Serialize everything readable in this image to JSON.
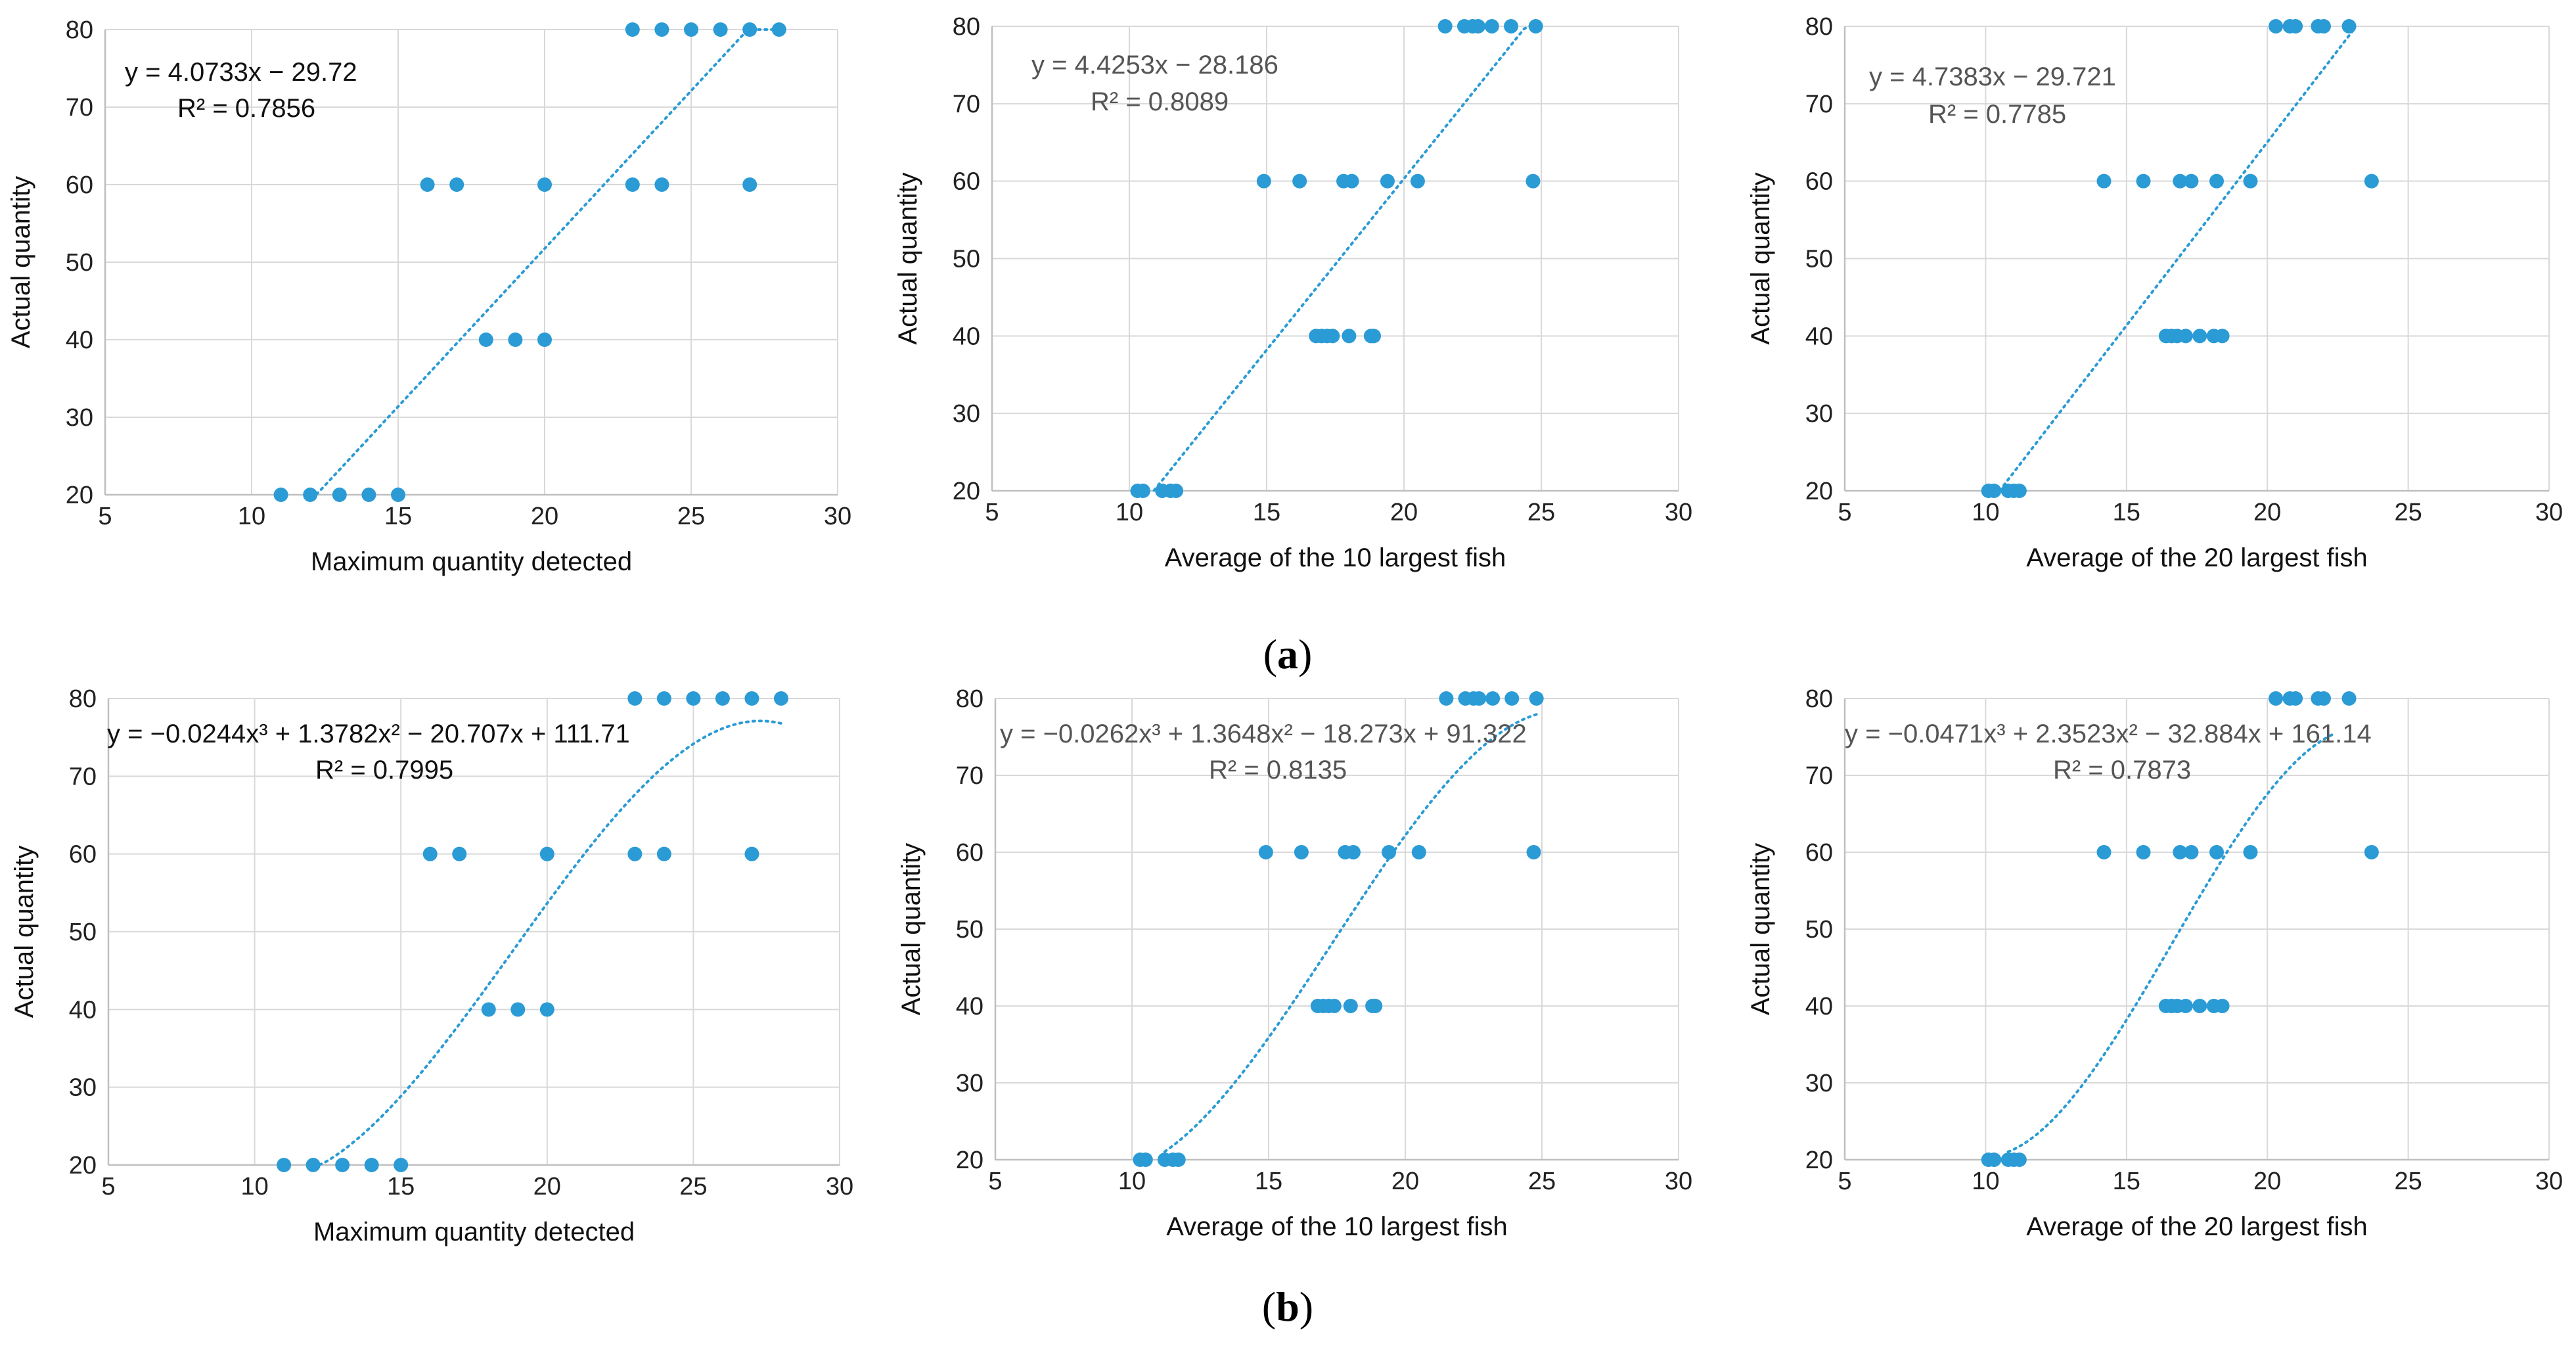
{
  "panel_labels": {
    "a": "a",
    "b": "b"
  },
  "colors": {
    "point": "#2b9bd5",
    "trend": "#2b9bd5",
    "grid": "#d9d9d9",
    "axis": "#bfbfbf"
  },
  "chart_data": [
    {
      "id": "a1",
      "type": "scatter",
      "trendline": "linear",
      "xlabel": "Maximum quantity detected",
      "ylabel": "Actual quantity",
      "xlim": [
        5,
        30
      ],
      "ylim": [
        20,
        80
      ],
      "xticks": [
        "5",
        "10",
        "15",
        "20",
        "25",
        "30"
      ],
      "yticks": [
        "20",
        "30",
        "40",
        "50",
        "60",
        "70",
        "80"
      ],
      "equation": "y = 4.0733x − 29.72",
      "r2": "R² = 0.7856",
      "coef": [
        -29.72,
        4.0733
      ],
      "fit_range": [
        12,
        27.8
      ],
      "points": [
        [
          11,
          20
        ],
        [
          12,
          20
        ],
        [
          13,
          20
        ],
        [
          14,
          20
        ],
        [
          15,
          20
        ],
        [
          18,
          40
        ],
        [
          19,
          40
        ],
        [
          20,
          40
        ],
        [
          16,
          60
        ],
        [
          17,
          60
        ],
        [
          20,
          60
        ],
        [
          23,
          60
        ],
        [
          24,
          60
        ],
        [
          27,
          60
        ],
        [
          23,
          80
        ],
        [
          24,
          80
        ],
        [
          25,
          80
        ],
        [
          26,
          80
        ],
        [
          27,
          80
        ],
        [
          28,
          80
        ]
      ]
    },
    {
      "id": "a2",
      "type": "scatter",
      "trendline": "linear",
      "xlabel": "Average of the 10 largest fish",
      "ylabel": "Actual quantity",
      "xlim": [
        5,
        30
      ],
      "ylim": [
        20,
        80
      ],
      "xticks": [
        "5",
        "10",
        "15",
        "20",
        "25",
        "30"
      ],
      "yticks": [
        "20",
        "30",
        "40",
        "50",
        "60",
        "70",
        "80"
      ],
      "equation": "y = 4.4253x − 28.186",
      "r2": "R² = 0.8089",
      "coef": [
        -28.186,
        4.4253
      ],
      "fit_range": [
        10.9,
        24.9
      ],
      "points": [
        [
          10.3,
          20
        ],
        [
          10.5,
          20
        ],
        [
          11.2,
          20
        ],
        [
          11.5,
          20
        ],
        [
          11.7,
          20
        ],
        [
          16.8,
          40
        ],
        [
          17.0,
          40
        ],
        [
          17.2,
          40
        ],
        [
          17.4,
          40
        ],
        [
          18.0,
          40
        ],
        [
          18.8,
          40
        ],
        [
          18.9,
          40
        ],
        [
          14.9,
          60
        ],
        [
          16.2,
          60
        ],
        [
          17.8,
          60
        ],
        [
          18.1,
          60
        ],
        [
          19.4,
          60
        ],
        [
          20.5,
          60
        ],
        [
          24.7,
          60
        ],
        [
          21.5,
          80
        ],
        [
          22.2,
          80
        ],
        [
          22.5,
          80
        ],
        [
          22.7,
          80
        ],
        [
          23.2,
          80
        ],
        [
          23.9,
          80
        ],
        [
          24.8,
          80
        ]
      ]
    },
    {
      "id": "a3",
      "type": "scatter",
      "trendline": "linear",
      "xlabel": "Average of the 20 largest fish",
      "ylabel": "Actual quantity",
      "xlim": [
        5,
        30
      ],
      "ylim": [
        20,
        80
      ],
      "xticks": [
        "5",
        "10",
        "15",
        "20",
        "25",
        "30"
      ],
      "yticks": [
        "20",
        "30",
        "40",
        "50",
        "60",
        "70",
        "80"
      ],
      "equation": "y = 4.7383x − 29.721",
      "r2": "R² = 0.7785",
      "coef": [
        -29.721,
        4.7383
      ],
      "fit_range": [
        10.5,
        23.1
      ],
      "points": [
        [
          10.1,
          20
        ],
        [
          10.3,
          20
        ],
        [
          10.8,
          20
        ],
        [
          11.0,
          20
        ],
        [
          11.2,
          20
        ],
        [
          16.4,
          40
        ],
        [
          16.6,
          40
        ],
        [
          16.8,
          40
        ],
        [
          17.1,
          40
        ],
        [
          17.6,
          40
        ],
        [
          18.1,
          40
        ],
        [
          18.4,
          40
        ],
        [
          14.2,
          60
        ],
        [
          15.6,
          60
        ],
        [
          16.9,
          60
        ],
        [
          17.3,
          60
        ],
        [
          18.2,
          60
        ],
        [
          19.4,
          60
        ],
        [
          23.7,
          60
        ],
        [
          20.3,
          80
        ],
        [
          20.8,
          80
        ],
        [
          21.0,
          80
        ],
        [
          21.8,
          80
        ],
        [
          22.0,
          80
        ],
        [
          22.9,
          80
        ]
      ]
    },
    {
      "id": "b1",
      "type": "scatter",
      "trendline": "cubic",
      "xlabel": "Maximum quantity detected",
      "ylabel": "Actual quantity",
      "xlim": [
        5,
        30
      ],
      "ylim": [
        20,
        80
      ],
      "xticks": [
        "5",
        "10",
        "15",
        "20",
        "25",
        "30"
      ],
      "yticks": [
        "20",
        "30",
        "40",
        "50",
        "60",
        "70",
        "80"
      ],
      "equation": "y = −0.0244x³ + 1.3782x² − 20.707x + 111.71",
      "r2": "R² = 0.7995",
      "coef": [
        111.71,
        -20.707,
        1.3782,
        -0.0244
      ],
      "fit_range": [
        12,
        28
      ],
      "points": [
        [
          11,
          20
        ],
        [
          12,
          20
        ],
        [
          13,
          20
        ],
        [
          14,
          20
        ],
        [
          15,
          20
        ],
        [
          18,
          40
        ],
        [
          19,
          40
        ],
        [
          20,
          40
        ],
        [
          16,
          60
        ],
        [
          17,
          60
        ],
        [
          20,
          60
        ],
        [
          23,
          60
        ],
        [
          24,
          60
        ],
        [
          27,
          60
        ],
        [
          23,
          80
        ],
        [
          24,
          80
        ],
        [
          25,
          80
        ],
        [
          26,
          80
        ],
        [
          27,
          80
        ],
        [
          28,
          80
        ]
      ]
    },
    {
      "id": "b2",
      "type": "scatter",
      "trendline": "cubic",
      "xlabel": "Average of the 10 largest fish",
      "ylabel": "Actual quantity",
      "xlim": [
        5,
        30
      ],
      "ylim": [
        20,
        80
      ],
      "xticks": [
        "5",
        "10",
        "15",
        "20",
        "25",
        "30"
      ],
      "yticks": [
        "20",
        "30",
        "40",
        "50",
        "60",
        "70",
        "80"
      ],
      "equation": "y = −0.0262x³ + 1.3648x² − 18.273x + 91.322",
      "r2": "R² = 0.8135",
      "coef": [
        91.322,
        -18.273,
        1.3648,
        -0.0262
      ],
      "fit_range": [
        11.2,
        24.9
      ],
      "points": [
        [
          10.3,
          20
        ],
        [
          10.5,
          20
        ],
        [
          11.2,
          20
        ],
        [
          11.5,
          20
        ],
        [
          11.7,
          20
        ],
        [
          16.8,
          40
        ],
        [
          17.0,
          40
        ],
        [
          17.2,
          40
        ],
        [
          17.4,
          40
        ],
        [
          18.0,
          40
        ],
        [
          18.8,
          40
        ],
        [
          18.9,
          40
        ],
        [
          14.9,
          60
        ],
        [
          16.2,
          60
        ],
        [
          17.8,
          60
        ],
        [
          18.1,
          60
        ],
        [
          19.4,
          60
        ],
        [
          20.5,
          60
        ],
        [
          24.7,
          60
        ],
        [
          21.5,
          80
        ],
        [
          22.2,
          80
        ],
        [
          22.5,
          80
        ],
        [
          22.7,
          80
        ],
        [
          23.2,
          80
        ],
        [
          23.9,
          80
        ],
        [
          24.8,
          80
        ]
      ]
    },
    {
      "id": "b3",
      "type": "scatter",
      "trendline": "cubic",
      "xlabel": "Average of the 20 largest fish",
      "ylabel": "Actual quantity",
      "xlim": [
        5,
        30
      ],
      "ylim": [
        20,
        80
      ],
      "xticks": [
        "5",
        "10",
        "15",
        "20",
        "25",
        "30"
      ],
      "yticks": [
        "20",
        "30",
        "40",
        "50",
        "60",
        "70",
        "80"
      ],
      "equation": "y = −0.0471x³ + 2.3523x² − 32.884x + 161.14",
      "r2": "R² = 0.7873",
      "coef": [
        161.14,
        -32.884,
        2.3523,
        -0.0471
      ],
      "fit_range": [
        10.8,
        22.3
      ],
      "points": [
        [
          10.1,
          20
        ],
        [
          10.3,
          20
        ],
        [
          10.8,
          20
        ],
        [
          11.0,
          20
        ],
        [
          11.2,
          20
        ],
        [
          16.4,
          40
        ],
        [
          16.6,
          40
        ],
        [
          16.8,
          40
        ],
        [
          17.1,
          40
        ],
        [
          17.6,
          40
        ],
        [
          18.1,
          40
        ],
        [
          18.4,
          40
        ],
        [
          14.2,
          60
        ],
        [
          15.6,
          60
        ],
        [
          16.9,
          60
        ],
        [
          17.3,
          60
        ],
        [
          18.2,
          60
        ],
        [
          19.4,
          60
        ],
        [
          23.7,
          60
        ],
        [
          20.3,
          80
        ],
        [
          20.8,
          80
        ],
        [
          21.0,
          80
        ],
        [
          21.8,
          80
        ],
        [
          22.0,
          80
        ],
        [
          22.9,
          80
        ]
      ]
    }
  ]
}
